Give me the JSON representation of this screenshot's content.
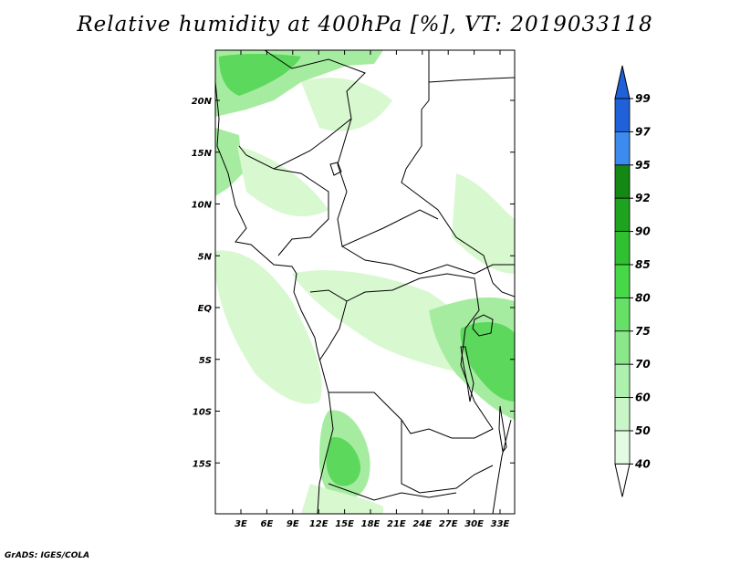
{
  "title": "Relative humidity at 400hPa [%], VT: 2019033118",
  "credit": "GrADS: IGES/COLA",
  "map": {
    "lat_labels": [
      "20N",
      "15N",
      "10N",
      "5N",
      "EQ",
      "5S",
      "10S",
      "15S"
    ],
    "lon_labels": [
      "3E",
      "6E",
      "9E",
      "12E",
      "15E",
      "18E",
      "21E",
      "24E",
      "27E",
      "30E",
      "33E"
    ]
  },
  "colorbar": {
    "levels": [
      "99",
      "97",
      "95",
      "92",
      "90",
      "85",
      "80",
      "75",
      "70",
      "60",
      "50",
      "40"
    ],
    "colors": [
      "#2060d8",
      "#3c8cf0",
      "#138813",
      "#1ea31e",
      "#2fc12f",
      "#47d847",
      "#66e066",
      "#8ae88a",
      "#aef0ae",
      "#c9f5c9",
      "#e2fbe2"
    ]
  },
  "palette": {
    "light": "#d8f8d0",
    "mid": "#a6eca0",
    "strong": "#5cd85c",
    "dark": "#2fc12f"
  }
}
